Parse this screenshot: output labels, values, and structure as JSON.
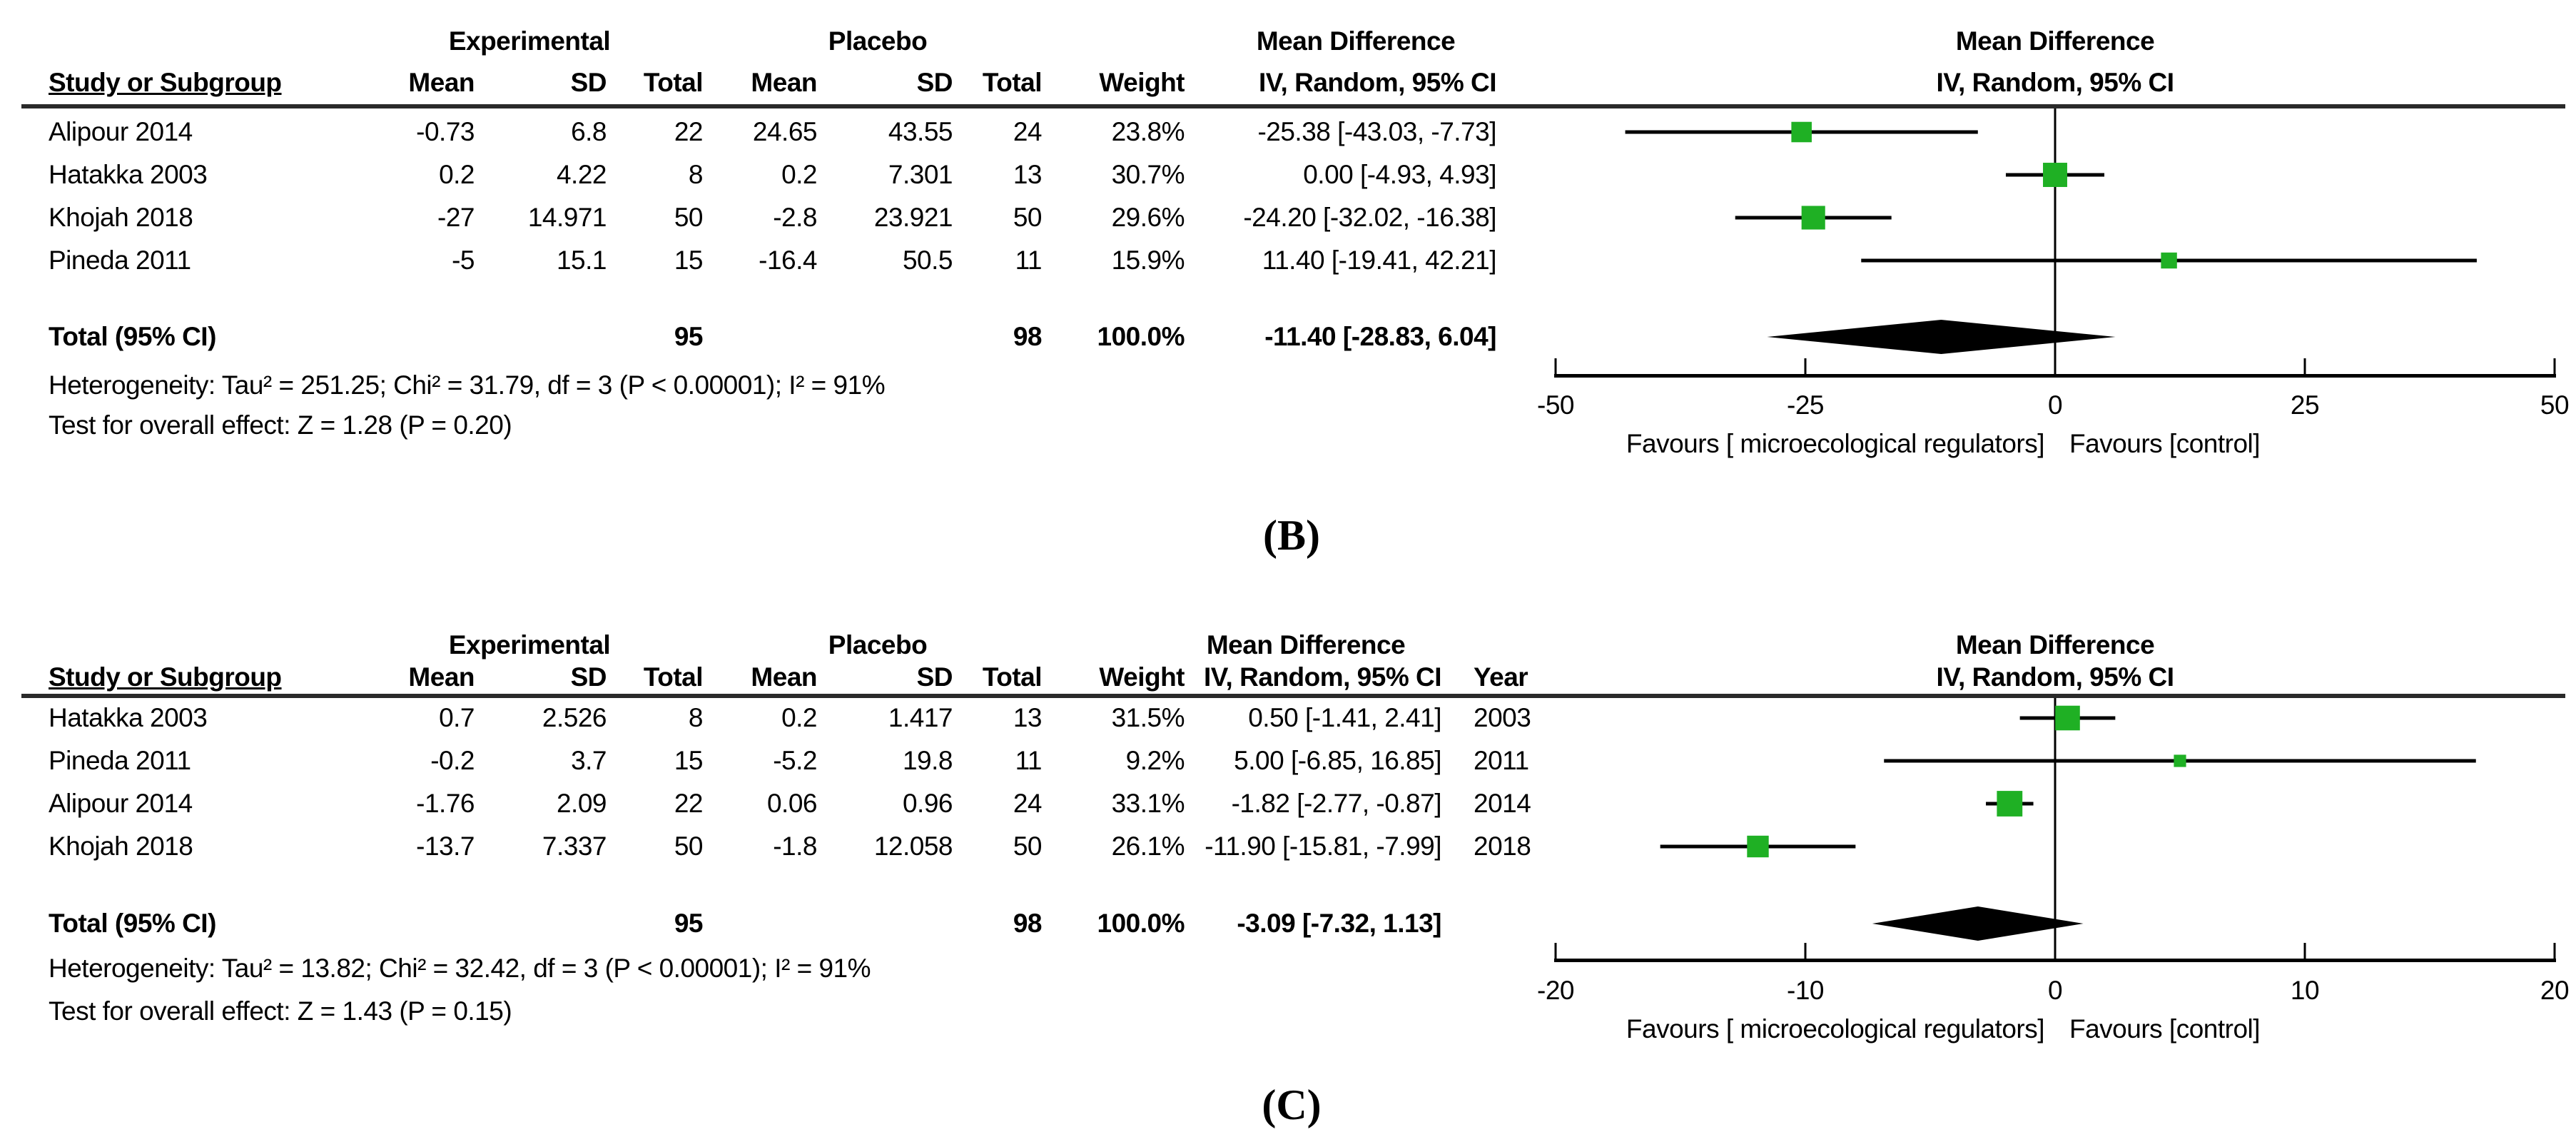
{
  "colors": {
    "square_green": "#1fb024",
    "line_black": "#000000",
    "diamond_black": "#000000",
    "rule_gray": "#2a2a2a"
  },
  "chart_data": [
    {
      "type": "forest",
      "panel_letter": "(B)",
      "group_headers": {
        "experimental": "Experimental",
        "placebo": "Placebo",
        "effect": "Mean Difference",
        "plot": "Mean Difference"
      },
      "column_headers": {
        "study": "Study or Subgroup",
        "mean1": "Mean",
        "sd1": "SD",
        "total1": "Total",
        "mean2": "Mean",
        "sd2": "SD",
        "total2": "Total",
        "weight": "Weight",
        "ci": "IV, Random, 95% CI",
        "plot_ci": "IV, Random, 95% CI"
      },
      "studies": [
        {
          "study": "Alipour 2014",
          "mean1": "-0.73",
          "sd1": "6.8",
          "total1": "22",
          "mean2": "24.65",
          "sd2": "43.55",
          "total2": "24",
          "weight": "23.8%",
          "ci_text": "-25.38 [-43.03, -7.73]",
          "md": -25.38,
          "lo": -43.03,
          "hi": -7.73,
          "weight_pct": 23.8
        },
        {
          "study": "Hatakka 2003",
          "mean1": "0.2",
          "sd1": "4.22",
          "total1": "8",
          "mean2": "0.2",
          "sd2": "7.301",
          "total2": "13",
          "weight": "30.7%",
          "ci_text": "0.00 [-4.93, 4.93]",
          "md": 0.0,
          "lo": -4.93,
          "hi": 4.93,
          "weight_pct": 30.7
        },
        {
          "study": "Khojah 2018",
          "mean1": "-27",
          "sd1": "14.971",
          "total1": "50",
          "mean2": "-2.8",
          "sd2": "23.921",
          "total2": "50",
          "weight": "29.6%",
          "ci_text": "-24.20 [-32.02, -16.38]",
          "md": -24.2,
          "lo": -32.02,
          "hi": -16.38,
          "weight_pct": 29.6
        },
        {
          "study": "Pineda 2011",
          "mean1": "-5",
          "sd1": "15.1",
          "total1": "15",
          "mean2": "-16.4",
          "sd2": "50.5",
          "total2": "11",
          "weight": "15.9%",
          "ci_text": "11.40 [-19.41, 42.21]",
          "md": 11.4,
          "lo": -19.41,
          "hi": 42.21,
          "weight_pct": 15.9
        }
      ],
      "total": {
        "label": "Total (95% CI)",
        "total1": "95",
        "total2": "98",
        "weight": "100.0%",
        "ci_text": "-11.40 [-28.83, 6.04]",
        "md": -11.4,
        "lo": -28.83,
        "hi": 6.04
      },
      "heterogeneity": "Heterogeneity: Tau² = 251.25; Chi² = 31.79, df = 3 (P < 0.00001); I² = 91%",
      "overall_effect": "Test for overall effect: Z = 1.28 (P = 0.20)",
      "axis": {
        "min": -50,
        "max": 50,
        "ticks": [
          -50,
          -25,
          0,
          25,
          50
        ],
        "tick_labels": [
          "-50",
          "-25",
          "0",
          "25",
          "50"
        ],
        "grid": false,
        "legend": "none"
      },
      "favours_left": "Favours [ microecological regulators]",
      "favours_right": "Favours [control]"
    },
    {
      "type": "forest",
      "panel_letter": "(C)",
      "group_headers": {
        "experimental": "Experimental",
        "placebo": "Placebo",
        "effect": "Mean Difference",
        "plot": "Mean Difference"
      },
      "column_headers": {
        "study": "Study or Subgroup",
        "mean1": "Mean",
        "sd1": "SD",
        "total1": "Total",
        "mean2": "Mean",
        "sd2": "SD",
        "total2": "Total",
        "weight": "Weight",
        "ci": "IV, Random, 95% CI",
        "year": "Year",
        "plot_ci": "IV, Random, 95% CI"
      },
      "studies": [
        {
          "study": "Hatakka 2003",
          "mean1": "0.7",
          "sd1": "2.526",
          "total1": "8",
          "mean2": "0.2",
          "sd2": "1.417",
          "total2": "13",
          "weight": "31.5%",
          "ci_text": "0.50 [-1.41, 2.41]",
          "year": "2003",
          "md": 0.5,
          "lo": -1.41,
          "hi": 2.41,
          "weight_pct": 31.5
        },
        {
          "study": "Pineda 2011",
          "mean1": "-0.2",
          "sd1": "3.7",
          "total1": "15",
          "mean2": "-5.2",
          "sd2": "19.8",
          "total2": "11",
          "weight": "9.2%",
          "ci_text": "5.00 [-6.85, 16.85]",
          "year": "2011",
          "md": 5.0,
          "lo": -6.85,
          "hi": 16.85,
          "weight_pct": 9.2
        },
        {
          "study": "Alipour 2014",
          "mean1": "-1.76",
          "sd1": "2.09",
          "total1": "22",
          "mean2": "0.06",
          "sd2": "0.96",
          "total2": "24",
          "weight": "33.1%",
          "ci_text": "-1.82 [-2.77, -0.87]",
          "year": "2014",
          "md": -1.82,
          "lo": -2.77,
          "hi": -0.87,
          "weight_pct": 33.1
        },
        {
          "study": "Khojah 2018",
          "mean1": "-13.7",
          "sd1": "7.337",
          "total1": "50",
          "mean2": "-1.8",
          "sd2": "12.058",
          "total2": "50",
          "weight": "26.1%",
          "ci_text": "-11.90 [-15.81, -7.99]",
          "year": "2018",
          "md": -11.9,
          "lo": -15.81,
          "hi": -7.99,
          "weight_pct": 26.1
        }
      ],
      "total": {
        "label": "Total (95% CI)",
        "total1": "95",
        "total2": "98",
        "weight": "100.0%",
        "ci_text": "-3.09 [-7.32, 1.13]",
        "md": -3.09,
        "lo": -7.32,
        "hi": 1.13
      },
      "heterogeneity": "Heterogeneity: Tau² = 13.82; Chi² = 32.42, df = 3 (P < 0.00001); I² = 91%",
      "overall_effect": "Test for overall effect: Z = 1.43 (P = 0.15)",
      "axis": {
        "min": -20,
        "max": 20,
        "ticks": [
          -20,
          -10,
          0,
          10,
          20
        ],
        "tick_labels": [
          "-20",
          "-10",
          "0",
          "10",
          "20"
        ],
        "grid": false,
        "legend": "none"
      },
      "favours_left": "Favours [ microecological regulators]",
      "favours_right": "Favours [control]"
    }
  ]
}
